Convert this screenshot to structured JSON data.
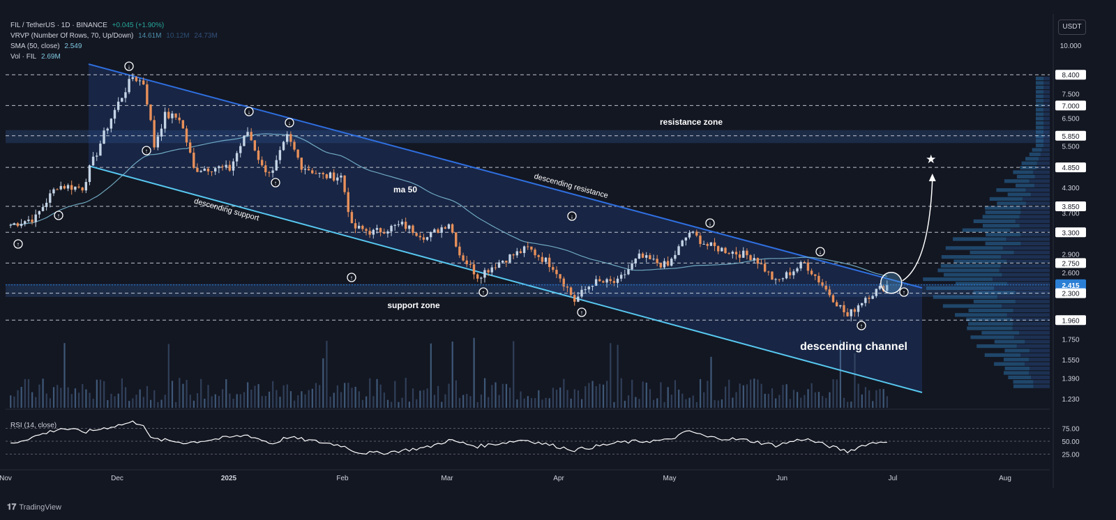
{
  "legend": {
    "symbol": "FIL / TetherUS · 1D · BINANCE",
    "change": "+0.045 (+1.90%)",
    "vrvp_label": "VRVP (Number Of Rows, 70, Up/Down)",
    "vrvp_v1": "14.61M",
    "vrvp_v2": "10.12M",
    "vrvp_v3": "24.73M",
    "sma_label": "SMA (50, close)",
    "sma_value": "2.549",
    "vol_label": "Vol · FIL",
    "vol_value": "2.69M"
  },
  "rsi_label": "RSI (14, close)",
  "currency": "USDT",
  "brand": "TradingView",
  "colors": {
    "background": "#131722",
    "up": "#c4d4e6",
    "down": "#e8905a",
    "channel_fill": "#1e3260",
    "resistance_line": "#2f6fe0",
    "support_line": "#58c8f0",
    "sma": "#7fc0d8",
    "last_price": "#2a7fd5"
  },
  "chart_data": {
    "type": "candlestick",
    "log_scale": true,
    "ylim": [
      1.2,
      11.0
    ],
    "y_ticks": [
      "10.000",
      "8.400",
      "7.500",
      "7.000",
      "6.500",
      "5.850",
      "5.500",
      "4.850",
      "4.300",
      "3.850",
      "3.700",
      "3.300",
      "2.900",
      "2.750",
      "2.600",
      "2.415",
      "2.300",
      "1.960",
      "1.750",
      "1.550",
      "1.390",
      "1.230"
    ],
    "x_ticks": [
      "Nov",
      "Dec",
      "2025",
      "Feb",
      "Mar",
      "Apr",
      "May",
      "Jun",
      "Jul",
      "Aug"
    ],
    "horizontal_levels": [
      8.4,
      7.0,
      5.85,
      4.85,
      3.85,
      3.3,
      2.75,
      2.3,
      1.96
    ],
    "current_price": 2.415,
    "annotations": [
      {
        "text": "resistance zone"
      },
      {
        "text": "support zone"
      },
      {
        "text": "descending resistance"
      },
      {
        "text": "descending support"
      },
      {
        "text": "ma 50"
      },
      {
        "text": "descending channel"
      }
    ],
    "zones": [
      {
        "name": "resistance-zone",
        "from": 5.6,
        "to": 6.05
      },
      {
        "name": "support-zone",
        "from": 2.25,
        "to": 2.43
      }
    ],
    "anchors": [
      {
        "date": "2024-11-01",
        "price": 3.45
      },
      {
        "date": "2024-11-08",
        "price": 3.6
      },
      {
        "date": "2024-11-14",
        "price": 4.35
      },
      {
        "date": "2024-11-21",
        "price": 4.3
      },
      {
        "date": "2024-11-25",
        "price": 5.3
      },
      {
        "date": "2024-11-30",
        "price": 6.8
      },
      {
        "date": "2024-12-05",
        "price": 8.3
      },
      {
        "date": "2024-12-08",
        "price": 8.0
      },
      {
        "date": "2024-12-11",
        "price": 5.5
      },
      {
        "date": "2024-12-14",
        "price": 6.6
      },
      {
        "date": "2024-12-18",
        "price": 6.5
      },
      {
        "date": "2024-12-22",
        "price": 4.8
      },
      {
        "date": "2024-12-28",
        "price": 4.85
      },
      {
        "date": "2025-01-01",
        "price": 4.8
      },
      {
        "date": "2025-01-06",
        "price": 6.0
      },
      {
        "date": "2025-01-10",
        "price": 4.85
      },
      {
        "date": "2025-01-13",
        "price": 4.7
      },
      {
        "date": "2025-01-17",
        "price": 5.8
      },
      {
        "date": "2025-01-21",
        "price": 4.9
      },
      {
        "date": "2025-01-27",
        "price": 4.6
      },
      {
        "date": "2025-02-01",
        "price": 4.6
      },
      {
        "date": "2025-02-04",
        "price": 3.4
      },
      {
        "date": "2025-02-10",
        "price": 3.3
      },
      {
        "date": "2025-02-18",
        "price": 3.45
      },
      {
        "date": "2025-02-25",
        "price": 3.2
      },
      {
        "date": "2025-03-03",
        "price": 3.5
      },
      {
        "date": "2025-03-06",
        "price": 2.9
      },
      {
        "date": "2025-03-11",
        "price": 2.55
      },
      {
        "date": "2025-03-18",
        "price": 2.8
      },
      {
        "date": "2025-03-25",
        "price": 3.0
      },
      {
        "date": "2025-04-01",
        "price": 2.7
      },
      {
        "date": "2025-04-07",
        "price": 2.2
      },
      {
        "date": "2025-04-12",
        "price": 2.45
      },
      {
        "date": "2025-04-19",
        "price": 2.45
      },
      {
        "date": "2025-04-25",
        "price": 2.85
      },
      {
        "date": "2025-05-03",
        "price": 2.7
      },
      {
        "date": "2025-05-09",
        "price": 3.3
      },
      {
        "date": "2025-05-14",
        "price": 3.05
      },
      {
        "date": "2025-05-20",
        "price": 2.95
      },
      {
        "date": "2025-05-27",
        "price": 2.85
      },
      {
        "date": "2025-06-02",
        "price": 2.45
      },
      {
        "date": "2025-06-10",
        "price": 2.75
      },
      {
        "date": "2025-06-16",
        "price": 2.35
      },
      {
        "date": "2025-06-22",
        "price": 2.0
      },
      {
        "date": "2025-06-27",
        "price": 2.25
      },
      {
        "date": "2025-07-03",
        "price": 2.415
      }
    ],
    "rsi_ticks": [
      "75.00",
      "50.00",
      "25.00"
    ],
    "rsi_anchors": [
      {
        "date": "2024-11-01",
        "value": 45
      },
      {
        "date": "2024-11-15",
        "value": 75
      },
      {
        "date": "2024-11-22",
        "value": 68
      },
      {
        "date": "2024-12-05",
        "value": 87
      },
      {
        "date": "2024-12-08",
        "value": 83
      },
      {
        "date": "2024-12-10",
        "value": 55
      },
      {
        "date": "2024-12-20",
        "value": 47
      },
      {
        "date": "2025-01-06",
        "value": 62
      },
      {
        "date": "2025-01-13",
        "value": 45
      },
      {
        "date": "2025-01-17",
        "value": 58
      },
      {
        "date": "2025-02-01",
        "value": 42
      },
      {
        "date": "2025-02-06",
        "value": 28
      },
      {
        "date": "2025-02-12",
        "value": 27
      },
      {
        "date": "2025-02-25",
        "value": 38
      },
      {
        "date": "2025-03-03",
        "value": 52
      },
      {
        "date": "2025-03-11",
        "value": 40
      },
      {
        "date": "2025-03-24",
        "value": 53
      },
      {
        "date": "2025-04-07",
        "value": 33
      },
      {
        "date": "2025-04-20",
        "value": 48
      },
      {
        "date": "2025-05-03",
        "value": 52
      },
      {
        "date": "2025-05-09",
        "value": 70
      },
      {
        "date": "2025-05-14",
        "value": 58
      },
      {
        "date": "2025-05-25",
        "value": 52
      },
      {
        "date": "2025-06-02",
        "value": 42
      },
      {
        "date": "2025-06-10",
        "value": 55
      },
      {
        "date": "2025-06-22",
        "value": 30
      },
      {
        "date": "2025-06-27",
        "value": 44
      },
      {
        "date": "2025-07-03",
        "value": 51
      }
    ]
  }
}
